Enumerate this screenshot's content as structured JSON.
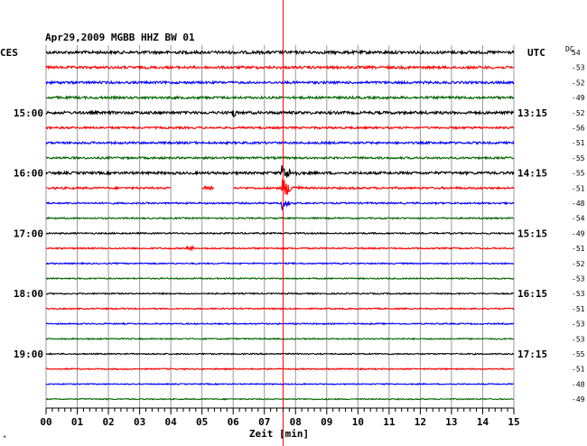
{
  "header": {
    "title": "Apr29,2009   MGBB HHZ BW 01",
    "left_label": "CES",
    "right_label": "UTC",
    "dc_label": "DC",
    "dc_first": "54"
  },
  "chart_data": {
    "type": "line",
    "title": "Apr29,2009   MGBB HHZ BW 01",
    "xlabel": "Zeit [min]",
    "ylabel": "",
    "x_ticks": [
      "00",
      "01",
      "02",
      "03",
      "04",
      "05",
      "06",
      "07",
      "08",
      "09",
      "10",
      "11",
      "12",
      "13",
      "14",
      "15"
    ],
    "xlim": [
      0,
      15
    ],
    "grid": true,
    "event_marker_min": 7.6,
    "trace_count": 24,
    "trace_colors": [
      "#000000",
      "#ff0000",
      "#0000ff",
      "#006400"
    ],
    "trace_amplitudes": [
      1.6,
      1.4,
      1.3,
      1.3,
      1.5,
      1.1,
      1.2,
      1.1,
      1.4,
      1.1,
      0.9,
      0.8,
      0.8,
      0.8,
      0.7,
      0.7,
      0.7,
      0.7,
      0.7,
      0.7,
      0.7,
      0.7,
      0.6,
      0.6
    ],
    "gaps": [
      {
        "trace": 9,
        "from_min": 4.0,
        "to_min": 5.0
      },
      {
        "trace": 9,
        "from_min": 5.4,
        "to_min": 6.0
      }
    ],
    "left_time_labels": [
      {
        "trace": 4,
        "label": "15:00"
      },
      {
        "trace": 8,
        "label": "16:00"
      },
      {
        "trace": 12,
        "label": "17:00"
      },
      {
        "trace": 16,
        "label": "18:00"
      },
      {
        "trace": 20,
        "label": "19:00"
      }
    ],
    "right_time_labels": [
      {
        "trace": 4,
        "label": "13:15"
      },
      {
        "trace": 8,
        "label": "14:15"
      },
      {
        "trace": 12,
        "label": "15:15"
      },
      {
        "trace": 16,
        "label": "16:15"
      },
      {
        "trace": 20,
        "label": "17:15"
      }
    ],
    "dc_values": [
      "54",
      "-53",
      "-52",
      "-49",
      "-52",
      "-56",
      "-51",
      "-55",
      "-55",
      "-51",
      "-48",
      "-54",
      "-49",
      "-51",
      "-52",
      "-53",
      "-53",
      "-51",
      "-53",
      "-53",
      "-55",
      "-51",
      "-48",
      "-49"
    ]
  }
}
